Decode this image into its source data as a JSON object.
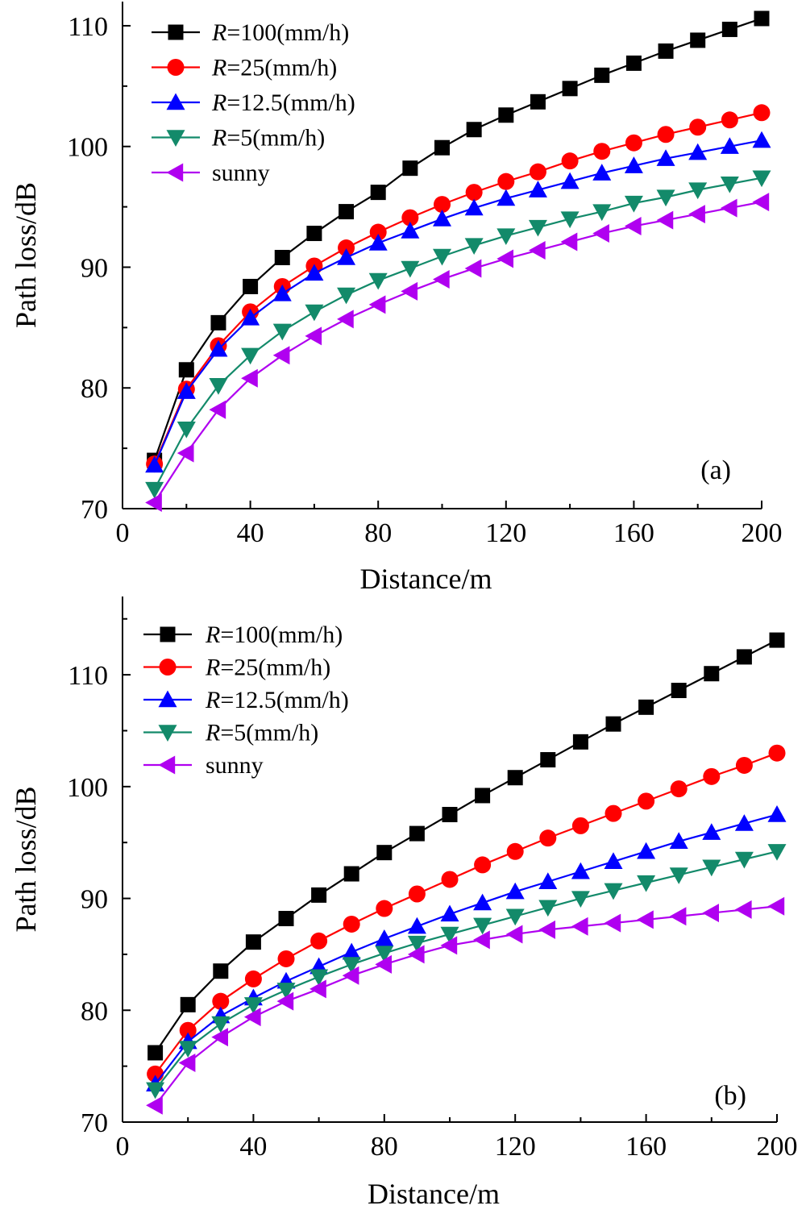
{
  "chart_data": [
    {
      "type": "line",
      "panel_label": "(a)",
      "xlabel": "Distance/m",
      "ylabel": "Path loss/dB",
      "xlim": [
        0,
        200
      ],
      "ylim": [
        70,
        112
      ],
      "xticks": [
        0,
        40,
        80,
        120,
        160,
        200
      ],
      "yticks": [
        70,
        80,
        90,
        100,
        110
      ],
      "legend_position": "top-left",
      "x": [
        10,
        20,
        30,
        40,
        50,
        60,
        70,
        80,
        90,
        100,
        110,
        120,
        130,
        140,
        150,
        160,
        170,
        180,
        190,
        200
      ],
      "series": [
        {
          "name_prefix": "R",
          "name_suffix": "=100(mm/h)",
          "color": "#000000",
          "marker": "square",
          "values": [
            74.0,
            81.5,
            85.4,
            88.4,
            90.8,
            92.8,
            94.6,
            96.2,
            98.2,
            99.9,
            101.4,
            102.6,
            103.7,
            104.8,
            105.9,
            106.9,
            107.9,
            108.8,
            109.7,
            110.6
          ]
        },
        {
          "name_prefix": "R",
          "name_suffix": "=25(mm/h)",
          "color": "#ff0000",
          "marker": "circle",
          "values": [
            73.7,
            79.9,
            83.5,
            86.3,
            88.4,
            90.1,
            91.6,
            92.9,
            94.1,
            95.2,
            96.2,
            97.1,
            97.9,
            98.8,
            99.6,
            100.3,
            101.0,
            101.6,
            102.2,
            102.8
          ]
        },
        {
          "name_prefix": "R",
          "name_suffix": "=12.5(mm/h)",
          "color": "#0000ff",
          "marker": "triangle-up",
          "values": [
            73.6,
            79.7,
            83.2,
            85.8,
            87.8,
            89.5,
            90.8,
            92.0,
            93.0,
            94.0,
            94.9,
            95.7,
            96.4,
            97.1,
            97.8,
            98.4,
            99.0,
            99.5,
            100.0,
            100.5
          ]
        },
        {
          "name_prefix": "R",
          "name_suffix": "=5(mm/h)",
          "color": "#138a6a",
          "marker": "triangle-down",
          "values": [
            71.6,
            76.6,
            80.2,
            82.7,
            84.7,
            86.3,
            87.7,
            88.9,
            89.9,
            90.9,
            91.8,
            92.6,
            93.3,
            94.0,
            94.6,
            95.3,
            95.8,
            96.4,
            96.9,
            97.4
          ]
        },
        {
          "name": "sunny",
          "color": "#b000f0",
          "marker": "triangle-left",
          "values": [
            70.5,
            74.6,
            78.2,
            80.8,
            82.7,
            84.3,
            85.7,
            86.9,
            88.0,
            89.0,
            89.9,
            90.7,
            91.4,
            92.1,
            92.8,
            93.4,
            93.9,
            94.4,
            94.9,
            95.4
          ]
        }
      ]
    },
    {
      "type": "line",
      "panel_label": "(b)",
      "xlabel": "Distance/m",
      "ylabel": "Path loss/dB",
      "xlim": [
        0,
        200
      ],
      "ylim": [
        70,
        117
      ],
      "xticks": [
        0,
        40,
        80,
        120,
        160,
        200
      ],
      "yticks": [
        70,
        80,
        90,
        100,
        110
      ],
      "legend_position": "top-left",
      "x": [
        10,
        20,
        30,
        40,
        50,
        60,
        70,
        80,
        90,
        100,
        110,
        120,
        130,
        140,
        150,
        160,
        170,
        180,
        190,
        200
      ],
      "series": [
        {
          "name_prefix": "R",
          "name_suffix": "=100(mm/h)",
          "color": "#000000",
          "marker": "square",
          "values": [
            76.2,
            80.5,
            83.5,
            86.1,
            88.2,
            90.3,
            92.2,
            94.1,
            95.8,
            97.5,
            99.2,
            100.8,
            102.4,
            104.0,
            105.6,
            107.1,
            108.6,
            110.1,
            111.6,
            113.1
          ]
        },
        {
          "name_prefix": "R",
          "name_suffix": "=25(mm/h)",
          "color": "#ff0000",
          "marker": "circle",
          "values": [
            74.3,
            78.2,
            80.8,
            82.8,
            84.6,
            86.2,
            87.7,
            89.1,
            90.4,
            91.7,
            93.0,
            94.2,
            95.4,
            96.5,
            97.6,
            98.7,
            99.8,
            100.9,
            101.9,
            103.0
          ]
        },
        {
          "name_prefix": "R",
          "name_suffix": "=12.5(mm/h)",
          "color": "#0000ff",
          "marker": "triangle-up",
          "values": [
            73.4,
            77.2,
            79.5,
            81.1,
            82.6,
            83.9,
            85.2,
            86.4,
            87.5,
            88.6,
            89.6,
            90.6,
            91.5,
            92.4,
            93.3,
            94.2,
            95.1,
            95.9,
            96.7,
            97.5
          ]
        },
        {
          "name_prefix": "R",
          "name_suffix": "=5(mm/h)",
          "color": "#138a6a",
          "marker": "triangle-down",
          "values": [
            72.9,
            76.6,
            78.8,
            80.5,
            81.8,
            83.0,
            84.1,
            85.1,
            86.0,
            86.8,
            87.6,
            88.4,
            89.2,
            90.0,
            90.7,
            91.4,
            92.1,
            92.8,
            93.5,
            94.2
          ]
        },
        {
          "name": "sunny",
          "color": "#b000f0",
          "marker": "triangle-left",
          "values": [
            71.5,
            75.3,
            77.6,
            79.4,
            80.8,
            81.9,
            83.1,
            84.1,
            85.0,
            85.8,
            86.3,
            86.8,
            87.2,
            87.5,
            87.8,
            88.1,
            88.4,
            88.7,
            89.0,
            89.3
          ]
        }
      ]
    }
  ]
}
